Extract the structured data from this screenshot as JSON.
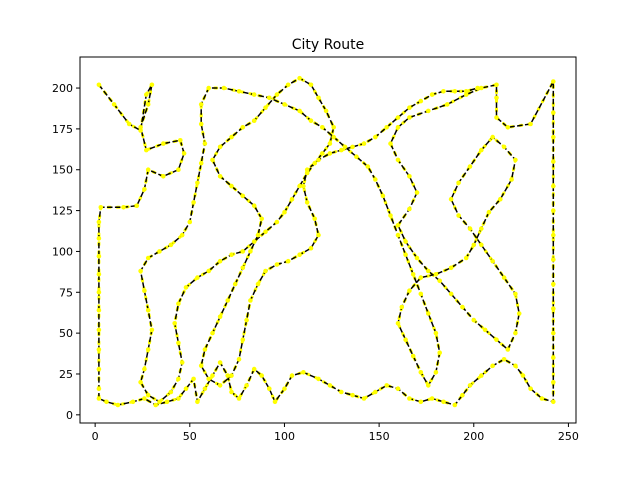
{
  "chart_data": {
    "type": "line",
    "title": "City Route",
    "xlabel": "",
    "ylabel": "",
    "xlim": [
      -8,
      254
    ],
    "ylim": [
      -5,
      219
    ],
    "xticks": [
      0,
      50,
      100,
      150,
      200,
      250
    ],
    "yticks": [
      0,
      25,
      50,
      75,
      100,
      125,
      150,
      175,
      200
    ],
    "grid": false,
    "route_color": "#000000",
    "point_color": "#ffff00",
    "series": [
      {
        "route": [
          [
            2,
            202
          ],
          [
            10,
            190
          ],
          [
            18,
            178
          ],
          [
            24,
            174
          ],
          [
            27,
            196
          ],
          [
            30,
            202
          ],
          [
            28,
            190
          ],
          [
            24,
            176
          ],
          [
            27,
            162
          ],
          [
            36,
            166
          ],
          [
            45,
            168
          ],
          [
            47,
            160
          ],
          [
            44,
            150
          ],
          [
            36,
            146
          ],
          [
            28,
            150
          ],
          [
            26,
            138
          ],
          [
            22,
            128
          ],
          [
            15,
            127
          ],
          [
            3,
            127
          ],
          [
            2,
            118
          ],
          [
            2,
            108
          ],
          [
            2,
            97
          ],
          [
            2,
            86
          ],
          [
            2,
            75
          ],
          [
            2,
            64
          ],
          [
            2,
            52
          ],
          [
            2,
            40
          ],
          [
            2,
            28
          ],
          [
            2,
            16
          ],
          [
            2,
            10
          ],
          [
            6,
            8
          ],
          [
            12,
            6
          ],
          [
            20,
            8
          ],
          [
            26,
            10
          ],
          [
            32,
            6
          ],
          [
            38,
            8
          ],
          [
            44,
            10
          ],
          [
            48,
            16
          ],
          [
            52,
            22
          ],
          [
            54,
            8
          ],
          [
            58,
            16
          ],
          [
            62,
            24
          ],
          [
            66,
            32
          ],
          [
            70,
            24
          ],
          [
            72,
            14
          ],
          [
            76,
            10
          ],
          [
            80,
            18
          ],
          [
            84,
            28
          ],
          [
            88,
            24
          ],
          [
            92,
            16
          ],
          [
            95,
            8
          ],
          [
            100,
            16
          ],
          [
            104,
            24
          ],
          [
            110,
            26
          ],
          [
            118,
            22
          ],
          [
            124,
            18
          ],
          [
            130,
            14
          ],
          [
            136,
            12
          ],
          [
            142,
            10
          ],
          [
            148,
            14
          ],
          [
            154,
            18
          ],
          [
            160,
            16
          ],
          [
            166,
            10
          ],
          [
            172,
            8
          ],
          [
            178,
            10
          ],
          [
            184,
            8
          ],
          [
            190,
            6
          ],
          [
            194,
            12
          ],
          [
            198,
            18
          ],
          [
            204,
            24
          ],
          [
            210,
            30
          ],
          [
            216,
            34
          ],
          [
            222,
            30
          ],
          [
            226,
            24
          ],
          [
            230,
            16
          ],
          [
            236,
            10
          ],
          [
            242,
            8
          ],
          [
            242,
            20
          ],
          [
            242,
            35
          ],
          [
            242,
            50
          ],
          [
            242,
            65
          ],
          [
            242,
            80
          ],
          [
            242,
            95
          ],
          [
            242,
            110
          ],
          [
            242,
            125
          ],
          [
            242,
            140
          ],
          [
            242,
            155
          ],
          [
            242,
            170
          ],
          [
            242,
            185
          ],
          [
            242,
            204
          ],
          [
            230,
            178
          ],
          [
            218,
            176
          ],
          [
            212,
            182
          ],
          [
            212,
            194
          ],
          [
            212,
            202
          ],
          [
            204,
            200
          ],
          [
            196,
            196
          ],
          [
            186,
            190
          ],
          [
            176,
            186
          ],
          [
            166,
            182
          ],
          [
            160,
            176
          ],
          [
            156,
            166
          ],
          [
            160,
            156
          ],
          [
            166,
            146
          ],
          [
            170,
            136
          ],
          [
            166,
            126
          ],
          [
            160,
            116
          ],
          [
            164,
            106
          ],
          [
            170,
            96
          ],
          [
            176,
            88
          ],
          [
            182,
            82
          ],
          [
            188,
            74
          ],
          [
            194,
            66
          ],
          [
            200,
            58
          ],
          [
            206,
            52
          ],
          [
            212,
            46
          ],
          [
            218,
            40
          ],
          [
            222,
            50
          ],
          [
            224,
            62
          ],
          [
            222,
            74
          ],
          [
            216,
            84
          ],
          [
            210,
            94
          ],
          [
            204,
            104
          ],
          [
            198,
            114
          ],
          [
            192,
            122
          ],
          [
            188,
            132
          ],
          [
            192,
            142
          ],
          [
            198,
            152
          ],
          [
            204,
            162
          ],
          [
            210,
            170
          ],
          [
            216,
            164
          ],
          [
            222,
            156
          ],
          [
            220,
            144
          ],
          [
            214,
            132
          ],
          [
            208,
            124
          ],
          [
            204,
            114
          ],
          [
            200,
            104
          ],
          [
            196,
            96
          ],
          [
            188,
            90
          ],
          [
            180,
            86
          ],
          [
            172,
            84
          ],
          [
            166,
            76
          ],
          [
            162,
            66
          ],
          [
            160,
            56
          ],
          [
            164,
            46
          ],
          [
            168,
            36
          ],
          [
            172,
            26
          ],
          [
            176,
            18
          ],
          [
            180,
            26
          ],
          [
            182,
            38
          ],
          [
            180,
            50
          ],
          [
            176,
            62
          ],
          [
            172,
            74
          ],
          [
            168,
            86
          ],
          [
            164,
            98
          ],
          [
            160,
            110
          ],
          [
            156,
            122
          ],
          [
            152,
            134
          ],
          [
            148,
            144
          ],
          [
            144,
            152
          ],
          [
            138,
            158
          ],
          [
            132,
            164
          ],
          [
            126,
            170
          ],
          [
            120,
            176
          ],
          [
            114,
            180
          ],
          [
            108,
            186
          ],
          [
            100,
            190
          ],
          [
            92,
            194
          ],
          [
            84,
            196
          ],
          [
            76,
            198
          ],
          [
            68,
            200
          ],
          [
            60,
            200
          ],
          [
            56,
            190
          ],
          [
            56,
            178
          ],
          [
            58,
            166
          ],
          [
            56,
            154
          ],
          [
            54,
            142
          ],
          [
            52,
            130
          ],
          [
            50,
            118
          ],
          [
            46,
            110
          ],
          [
            40,
            104
          ],
          [
            34,
            100
          ],
          [
            28,
            96
          ],
          [
            24,
            88
          ],
          [
            26,
            76
          ],
          [
            28,
            64
          ],
          [
            30,
            52
          ],
          [
            28,
            40
          ],
          [
            26,
            28
          ],
          [
            24,
            20
          ],
          [
            28,
            12
          ],
          [
            34,
            8
          ],
          [
            40,
            14
          ],
          [
            44,
            22
          ],
          [
            46,
            32
          ],
          [
            44,
            44
          ],
          [
            42,
            56
          ],
          [
            44,
            68
          ],
          [
            48,
            78
          ],
          [
            54,
            84
          ],
          [
            60,
            88
          ],
          [
            66,
            94
          ],
          [
            72,
            98
          ],
          [
            78,
            100
          ],
          [
            84,
            106
          ],
          [
            90,
            112
          ],
          [
            96,
            118
          ],
          [
            100,
            124
          ],
          [
            104,
            132
          ],
          [
            108,
            140
          ],
          [
            112,
            148
          ],
          [
            116,
            154
          ],
          [
            120,
            160
          ],
          [
            124,
            166
          ],
          [
            126,
            176
          ],
          [
            122,
            186
          ],
          [
            118,
            194
          ],
          [
            114,
            202
          ],
          [
            108,
            206
          ],
          [
            102,
            202
          ],
          [
            96,
            196
          ],
          [
            90,
            188
          ],
          [
            84,
            180
          ],
          [
            78,
            176
          ],
          [
            72,
            170
          ],
          [
            66,
            164
          ],
          [
            62,
            156
          ],
          [
            66,
            146
          ],
          [
            72,
            140
          ],
          [
            78,
            134
          ],
          [
            84,
            128
          ],
          [
            88,
            120
          ],
          [
            86,
            110
          ],
          [
            82,
            100
          ],
          [
            78,
            90
          ],
          [
            74,
            80
          ],
          [
            70,
            70
          ],
          [
            66,
            60
          ],
          [
            62,
            50
          ],
          [
            58,
            40
          ],
          [
            56,
            30
          ],
          [
            60,
            22
          ],
          [
            66,
            18
          ],
          [
            72,
            24
          ],
          [
            76,
            34
          ],
          [
            78,
            46
          ],
          [
            80,
            58
          ],
          [
            82,
            70
          ],
          [
            86,
            80
          ],
          [
            90,
            88
          ],
          [
            96,
            92
          ],
          [
            102,
            94
          ],
          [
            108,
            98
          ],
          [
            114,
            102
          ],
          [
            118,
            110
          ],
          [
            116,
            120
          ],
          [
            112,
            130
          ],
          [
            110,
            140
          ],
          [
            112,
            150
          ],
          [
            118,
            156
          ],
          [
            124,
            160
          ],
          [
            130,
            162
          ],
          [
            136,
            164
          ],
          [
            142,
            166
          ],
          [
            148,
            170
          ],
          [
            154,
            176
          ],
          [
            160,
            182
          ],
          [
            166,
            188
          ],
          [
            172,
            192
          ],
          [
            178,
            196
          ],
          [
            184,
            198
          ],
          [
            190,
            198
          ],
          [
            196,
            198
          ],
          [
            202,
            200
          ]
        ]
      }
    ]
  }
}
